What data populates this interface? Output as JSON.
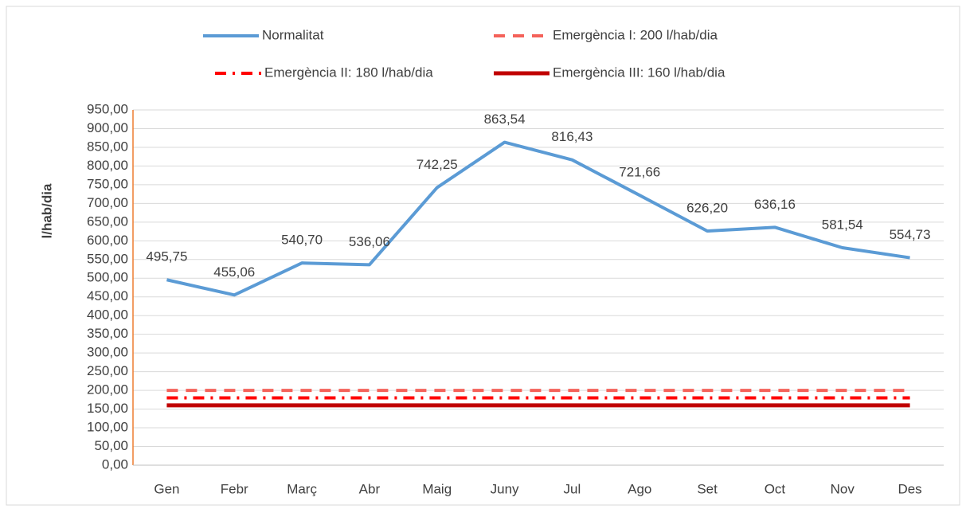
{
  "chart_data": {
    "type": "line",
    "y_label": "l/hab/dia",
    "categories": [
      "Gen",
      "Febr",
      "Març",
      "Abr",
      "Maig",
      "Juny",
      "Jul",
      "Ago",
      "Set",
      "Oct",
      "Nov",
      "Des"
    ],
    "series": [
      {
        "name": "Normalitat",
        "color": "#5b9bd5",
        "line_style": "solid",
        "values": [
          495.75,
          455.06,
          540.7,
          536.06,
          742.25,
          863.54,
          816.43,
          721.66,
          626.2,
          636.16,
          581.54,
          554.73
        ],
        "value_labels": [
          "495,75",
          "455,06",
          "540,70",
          "536,06",
          "742,25",
          "863,54",
          "816,43",
          "721,66",
          "626,20",
          "636,16",
          "581,54",
          "554,73"
        ]
      },
      {
        "name": "Emergència I: 200 l/hab/dia",
        "color": "#f4625a",
        "line_style": "dash",
        "values": [
          200,
          200,
          200,
          200,
          200,
          200,
          200,
          200,
          200,
          200,
          200,
          200
        ]
      },
      {
        "name": "Emergència II: 180 l/hab/dia",
        "color": "#ff0000",
        "line_style": "dash-dot",
        "values": [
          180,
          180,
          180,
          180,
          180,
          180,
          180,
          180,
          180,
          180,
          180,
          180
        ]
      },
      {
        "name": "Emergència III: 160 l/hab/dia",
        "color": "#c00000",
        "line_style": "solid-thick",
        "values": [
          160,
          160,
          160,
          160,
          160,
          160,
          160,
          160,
          160,
          160,
          160,
          160
        ]
      }
    ],
    "ylim": [
      0,
      950
    ],
    "yticks": [
      {
        "value": 0,
        "label": "0,00"
      },
      {
        "value": 50,
        "label": "50,00"
      },
      {
        "value": 100,
        "label": "100,00"
      },
      {
        "value": 150,
        "label": "150,00"
      },
      {
        "value": 200,
        "label": "200,00"
      },
      {
        "value": 250,
        "label": "250,00"
      },
      {
        "value": 300,
        "label": "300,00"
      },
      {
        "value": 350,
        "label": "350,00"
      },
      {
        "value": 400,
        "label": "400,00"
      },
      {
        "value": 450,
        "label": "450,00"
      },
      {
        "value": 500,
        "label": "500,00"
      },
      {
        "value": 550,
        "label": "550,00"
      },
      {
        "value": 600,
        "label": "600,00"
      },
      {
        "value": 650,
        "label": "650,00"
      },
      {
        "value": 700,
        "label": "700,00"
      },
      {
        "value": 750,
        "label": "750,00"
      },
      {
        "value": 800,
        "label": "800,00"
      },
      {
        "value": 850,
        "label": "850,00"
      },
      {
        "value": 900,
        "label": "900,00"
      },
      {
        "value": 950,
        "label": "950,00"
      }
    ],
    "grid": true
  }
}
